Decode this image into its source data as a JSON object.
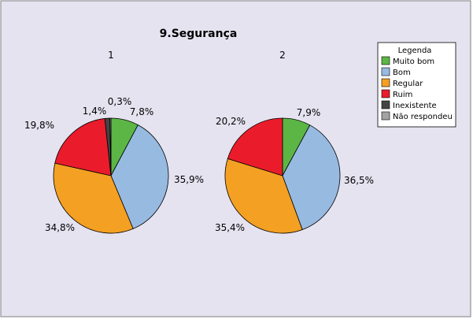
{
  "chart_data": {
    "type": "pie",
    "title": "9.Segurança",
    "legend": {
      "title": "Legenda",
      "placement": "top-right",
      "items": [
        {
          "label": "Muito bom",
          "color": "#5cb646"
        },
        {
          "label": "Bom",
          "color": "#97bae1"
        },
        {
          "label": "Regular",
          "color": "#f4a023"
        },
        {
          "label": "Ruim",
          "color": "#ea1c2c"
        },
        {
          "label": "Inexistente",
          "color": "#444444"
        },
        {
          "label": "Não respondeu",
          "color": "#a3a3a3"
        }
      ]
    },
    "categories": [
      "Muito bom",
      "Bom",
      "Regular",
      "Ruim",
      "Inexistente",
      "Não respondeu"
    ],
    "series": [
      {
        "name": "1",
        "values": [
          7.8,
          35.9,
          34.8,
          19.8,
          1.4,
          0.3
        ],
        "labels": [
          "7,8%",
          "35,9%",
          "34,8%",
          "19,8%",
          "1,4%",
          "0,3%"
        ]
      },
      {
        "name": "2",
        "values": [
          7.9,
          36.5,
          35.4,
          20.2,
          0,
          0
        ],
        "labels": [
          "7,9%",
          "36,5%",
          "35,4%",
          "20,2%",
          "",
          ""
        ]
      }
    ]
  },
  "colors": {
    "plot_background": "#e6e3f0",
    "border": "#7f7f7f"
  }
}
